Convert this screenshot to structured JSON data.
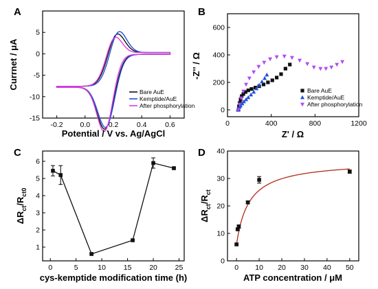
{
  "panels": {
    "A": "A",
    "B": "B",
    "C": "C",
    "D": "D"
  },
  "colors": {
    "black": "#111111",
    "blue": "#1f4fd8",
    "magenta": "#e03ae0",
    "violet": "#b04bf0",
    "fit": "#b02a18"
  },
  "chart_data": [
    {
      "id": "A",
      "type": "line",
      "xlabel": "Potential / V vs. Ag/AgCl",
      "ylabel": "Currnet / μA",
      "xlim": [
        -0.3,
        0.7
      ],
      "ylim": [
        -15,
        10
      ],
      "xticks": [
        -0.2,
        0.0,
        0.2,
        0.4,
        0.6
      ],
      "xtick_labels": [
        "-0.2",
        "0.0",
        "0.2",
        "0.4",
        "0.6"
      ],
      "yticks": [
        -15,
        -10,
        -5,
        0,
        5
      ],
      "ytick_labels": [
        "-15",
        "-10",
        "-5",
        "0",
        "5"
      ],
      "legend_position": "bottom-right",
      "series": [
        {
          "name": "Bare AuE",
          "color": "black",
          "E0": 0.18,
          "ipa": 6.2,
          "ipc": 11.8,
          "sep": 0.06,
          "w": 0.085,
          "cap": 0.4
        },
        {
          "name": "Kemptide/AuE",
          "color": "blue",
          "E0": 0.19,
          "ipa": 6.6,
          "ipc": 11.2,
          "sep": 0.07,
          "w": 0.085,
          "cap": 0.4
        },
        {
          "name": "After phosphorylation",
          "color": "magenta",
          "E0": 0.17,
          "ipa": 5.6,
          "ipc": 12.6,
          "sep": 0.05,
          "w": 0.08,
          "cap": 0.35
        }
      ]
    },
    {
      "id": "B",
      "type": "scatter",
      "xlabel": "Z' / Ω",
      "ylabel": "-Z'' / Ω",
      "xlim": [
        0,
        1200
      ],
      "ylim": [
        -50,
        700
      ],
      "xticks": [
        0,
        400,
        800,
        1200
      ],
      "xtick_labels": [
        "0",
        "400",
        "800",
        "1200"
      ],
      "yticks": [
        0,
        200,
        400,
        600
      ],
      "ytick_labels": [
        "0",
        "200",
        "400",
        "600"
      ],
      "legend_position": "bottom-right",
      "series": [
        {
          "name": "Bare AuE",
          "color": "black",
          "marker": "square",
          "x": [
            100,
            105,
            112,
            120,
            130,
            145,
            165,
            190,
            220,
            255,
            290,
            330,
            370,
            410,
            450,
            490,
            530,
            570
          ],
          "y": [
            0,
            25,
            50,
            75,
            100,
            115,
            130,
            142,
            152,
            162,
            172,
            185,
            200,
            215,
            235,
            260,
            300,
            330
          ]
        },
        {
          "name": "Kemptide/AuE",
          "color": "blue",
          "marker": "triangle-up",
          "x": [
            95,
            100,
            110,
            120,
            135,
            150,
            170,
            190,
            215,
            240,
            265,
            290,
            315,
            340,
            360
          ],
          "y": [
            0,
            10,
            20,
            30,
            45,
            60,
            75,
            90,
            110,
            130,
            155,
            180,
            205,
            230,
            255
          ]
        },
        {
          "name": "After phosphorylation",
          "color": "violet",
          "marker": "triangle-down",
          "x": [
            100,
            110,
            125,
            145,
            170,
            200,
            240,
            285,
            335,
            390,
            450,
            520,
            590,
            660,
            730,
            790,
            850,
            900,
            950,
            1000,
            1050
          ],
          "y": [
            0,
            40,
            85,
            135,
            185,
            230,
            275,
            315,
            345,
            370,
            385,
            390,
            380,
            360,
            335,
            310,
            300,
            300,
            310,
            330,
            350
          ]
        }
      ]
    },
    {
      "id": "C",
      "type": "line",
      "xlabel": "cys-kemptide modification time (h)",
      "ylabel": "ΔRct/Rct0",
      "ylabel_main": "ΔR",
      "ylabel_sub1": "ct",
      "ylabel_mid": "/R",
      "ylabel_sub2": "ct0",
      "xlim": [
        -1.5,
        26
      ],
      "ylim": [
        0.2,
        6.6
      ],
      "xticks": [
        0,
        5,
        10,
        15,
        20,
        25
      ],
      "xtick_labels": [
        "0",
        "5",
        "10",
        "15",
        "20",
        "25"
      ],
      "yticks": [
        1,
        2,
        3,
        4,
        5,
        6
      ],
      "ytick_labels": [
        "1",
        "2",
        "3",
        "4",
        "5",
        "6"
      ],
      "x": [
        0.5,
        2,
        8,
        16,
        20,
        24
      ],
      "y": [
        5.45,
        5.2,
        0.6,
        1.4,
        5.9,
        5.6
      ],
      "err": [
        0.3,
        0.55,
        0.05,
        0.05,
        0.3,
        0.05
      ]
    },
    {
      "id": "D",
      "type": "scatter",
      "xlabel": "ATP concentration / μM",
      "ylabel": "ΔRct/Rct",
      "ylabel_main": "ΔR",
      "ylabel_sub1": "ct",
      "ylabel_mid": "/R",
      "ylabel_sub2": "ct",
      "xlim": [
        -4,
        54
      ],
      "ylim": [
        0,
        40
      ],
      "xticks": [
        0,
        10,
        20,
        30,
        40,
        50
      ],
      "xtick_labels": [
        "0",
        "10",
        "20",
        "30",
        "40",
        "50"
      ],
      "yticks": [
        0,
        10,
        20,
        30,
        40
      ],
      "ytick_labels": [
        "0",
        "10",
        "20",
        "30",
        "40"
      ],
      "x": [
        0,
        0.5,
        1,
        5,
        10,
        50
      ],
      "y": [
        6,
        11.5,
        12.5,
        21.3,
        29.5,
        32.5
      ],
      "err": [
        0.3,
        0.4,
        0.6,
        0.5,
        1.2,
        0.6
      ],
      "fit": {
        "type": "langmuir",
        "ymax": 36.5,
        "kd": 5.5
      }
    }
  ]
}
